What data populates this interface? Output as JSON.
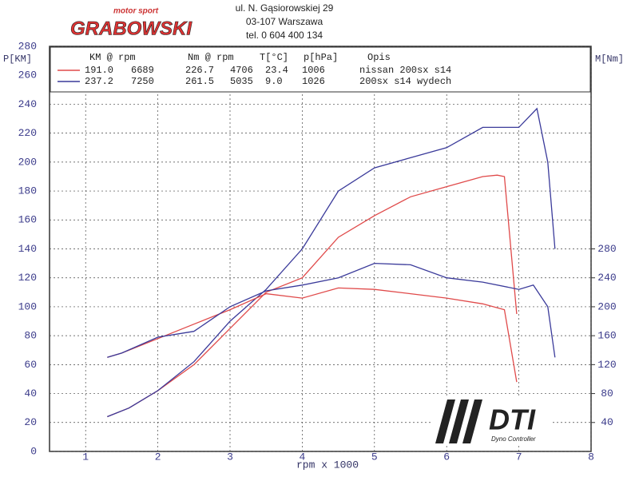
{
  "header": {
    "tagline": "motor sport",
    "brand": "GRABOWSKI",
    "address": [
      "ul. N. Gąsiorowskiej 29",
      "03-107 Warszawa",
      "tel. 0 604 400 134"
    ]
  },
  "logo": {
    "name": "DTI",
    "subtitle": "Dyno Controller"
  },
  "chart_data": {
    "type": "line",
    "ylabel": "P[KM]",
    "y2label": "M[Nm]",
    "xlabel": "rpm   x 1000",
    "xlim": [
      0.5,
      8
    ],
    "xticks": [
      1,
      2,
      3,
      4,
      5,
      6,
      7,
      8
    ],
    "ylim": [
      0,
      280
    ],
    "yticks": [
      0,
      20,
      40,
      60,
      80,
      100,
      120,
      140,
      160,
      180,
      200,
      220,
      240,
      260,
      280
    ],
    "y2lim": [
      0,
      560
    ],
    "y2ticks": [
      40,
      80,
      120,
      160,
      200,
      240,
      280
    ],
    "grid": true,
    "legend_table": {
      "columns": [
        "KM @ rpm",
        "Nm @ rpm",
        "T[°C]",
        "p[hPa]",
        "Opis"
      ],
      "rows": [
        [
          "191.0",
          "6689",
          "226.7",
          "4706",
          "23.4",
          "1006",
          "nissan 200sx s14"
        ],
        [
          "237.2",
          "7250",
          "261.5",
          "5035",
          "9.0",
          "1026",
          "200sx s14 wydech"
        ]
      ]
    },
    "series": [
      {
        "color": "#e04a4a",
        "axis": "y",
        "x": [
          1.3,
          1.6,
          2.0,
          2.5,
          3.0,
          3.5,
          4.0,
          4.5,
          5.0,
          5.5,
          6.0,
          6.5,
          6.7,
          6.8,
          6.97
        ],
        "values": [
          24,
          30,
          42,
          60,
          85,
          110,
          120,
          148,
          163,
          176,
          183,
          190,
          191,
          190,
          95
        ]
      },
      {
        "color": "#3a3a9a",
        "axis": "y",
        "x": [
          1.3,
          1.6,
          2.0,
          2.5,
          3.0,
          3.5,
          4.0,
          4.5,
          5.0,
          5.5,
          6.0,
          6.5,
          7.0,
          7.25,
          7.4,
          7.5
        ],
        "values": [
          24,
          30,
          42,
          62,
          90,
          112,
          140,
          180,
          196,
          203,
          210,
          224,
          224,
          237,
          200,
          140
        ]
      },
      {
        "color": "#e04a4a",
        "axis": "y2",
        "x": [
          1.3,
          1.5,
          2.0,
          2.5,
          3.0,
          3.5,
          4.0,
          4.5,
          5.0,
          5.5,
          6.0,
          6.5,
          6.8,
          6.97
        ],
        "values": [
          130,
          136,
          156,
          176,
          196,
          218,
          212,
          226,
          224,
          218,
          212,
          204,
          196,
          96
        ]
      },
      {
        "color": "#3a3a9a",
        "axis": "y2",
        "x": [
          1.3,
          1.5,
          2.0,
          2.5,
          3.0,
          3.5,
          4.0,
          4.5,
          5.0,
          5.5,
          6.0,
          6.5,
          7.0,
          7.2,
          7.4,
          7.5
        ],
        "values": [
          130,
          136,
          158,
          166,
          200,
          222,
          230,
          240,
          260,
          258,
          240,
          234,
          224,
          230,
          200,
          130
        ]
      }
    ]
  }
}
